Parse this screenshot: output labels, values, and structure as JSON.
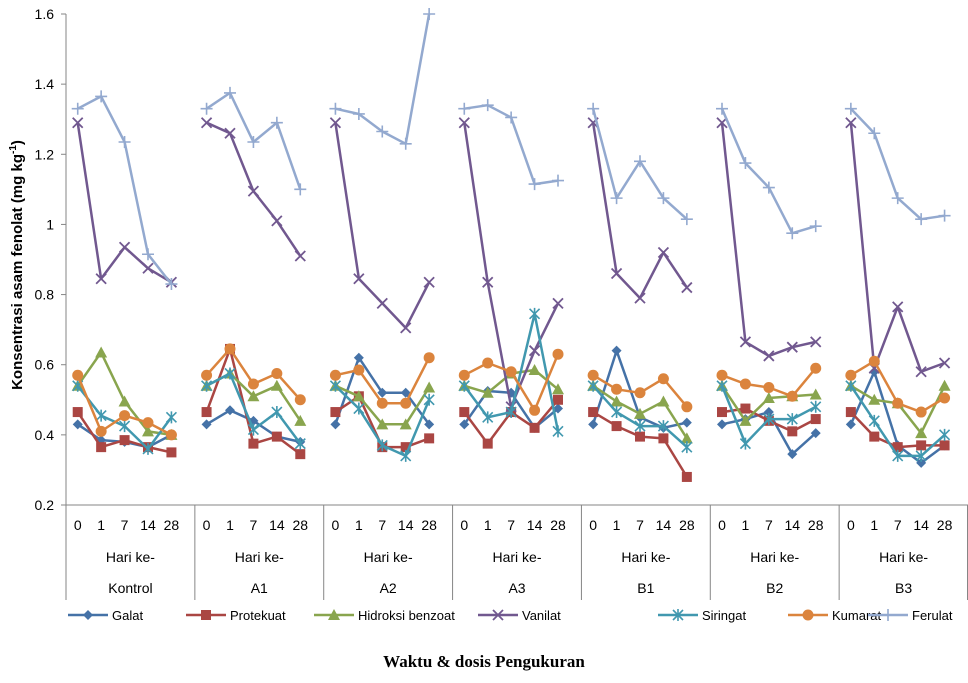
{
  "chart_data": {
    "type": "line",
    "title": "",
    "ylabel_main": "Konsentrasi asam fenolat (mg kg",
    "ylabel_sup": "-1",
    "ylabel_close": ")",
    "xlabel": "Waktu & dosis Pengukuran",
    "ylim": [
      0.2,
      1.6
    ],
    "yticks": [
      "0.2",
      "0.4",
      "0.6",
      "0.8",
      "1",
      "1.2",
      "1.4",
      "1.6"
    ],
    "days": [
      "0",
      "1",
      "7",
      "14",
      "28"
    ],
    "day_label": "Hari ke-",
    "groups": [
      "Kontrol",
      "A1",
      "A2",
      "A3",
      "B1",
      "B2",
      "B3"
    ],
    "legend_position": "bottom",
    "series": [
      {
        "name": "Galat",
        "color": "#4572A7",
        "marker": "diamond",
        "values": [
          [
            0.43,
            0.385,
            0.38,
            0.365,
            0.4
          ],
          [
            0.43,
            0.47,
            0.44,
            0.395,
            0.38
          ],
          [
            0.43,
            0.62,
            0.52,
            0.52,
            0.43
          ],
          [
            0.43,
            0.525,
            0.52,
            0.42,
            0.475
          ],
          [
            0.43,
            0.64,
            0.45,
            0.42,
            0.435
          ],
          [
            0.43,
            0.445,
            0.465,
            0.345,
            0.405
          ],
          [
            0.43,
            0.58,
            0.37,
            0.32,
            0.37
          ]
        ]
      },
      {
        "name": "Protekuat",
        "color": "#AA4643",
        "marker": "square",
        "values": [
          [
            0.465,
            0.365,
            0.385,
            0.365,
            0.35
          ],
          [
            0.465,
            0.645,
            0.375,
            0.395,
            0.345
          ],
          [
            0.465,
            0.51,
            0.365,
            0.365,
            0.39
          ],
          [
            0.465,
            0.375,
            0.465,
            0.42,
            0.5
          ],
          [
            0.465,
            0.425,
            0.395,
            0.39,
            0.28
          ],
          [
            0.465,
            0.475,
            0.44,
            0.41,
            0.445
          ],
          [
            0.465,
            0.395,
            0.365,
            0.37,
            0.37
          ]
        ]
      },
      {
        "name": "Hidroksi benzoat",
        "color": "#89A54E",
        "marker": "triangle",
        "values": [
          [
            0.54,
            0.635,
            0.495,
            0.41,
            0.4
          ],
          [
            0.54,
            0.575,
            0.51,
            0.54,
            0.44
          ],
          [
            0.54,
            0.51,
            0.43,
            0.43,
            0.535
          ],
          [
            0.54,
            0.52,
            0.575,
            0.585,
            0.53
          ],
          [
            0.54,
            0.495,
            0.46,
            0.495,
            0.39
          ],
          [
            0.54,
            0.44,
            0.505,
            0.51,
            0.515
          ],
          [
            0.54,
            0.5,
            0.49,
            0.405,
            0.54
          ]
        ]
      },
      {
        "name": "Vanilat",
        "color": "#71588F",
        "marker": "x",
        "values": [
          [
            1.29,
            0.845,
            0.935,
            0.875,
            0.835
          ],
          [
            1.29,
            1.26,
            1.095,
            1.01,
            0.91
          ],
          [
            1.29,
            0.845,
            0.775,
            0.705,
            0.835
          ],
          [
            1.29,
            0.835,
            0.48,
            0.64,
            0.775
          ],
          [
            1.29,
            0.86,
            0.79,
            0.92,
            0.82
          ],
          [
            1.29,
            0.665,
            0.625,
            0.65,
            0.665
          ],
          [
            1.29,
            0.59,
            0.765,
            0.58,
            0.605
          ]
        ]
      },
      {
        "name": "Siringat",
        "color": "#4198AF",
        "marker": "star",
        "values": [
          [
            0.54,
            0.455,
            0.425,
            0.36,
            0.45
          ],
          [
            0.54,
            0.575,
            0.415,
            0.465,
            0.375
          ],
          [
            0.54,
            0.475,
            0.37,
            0.34,
            0.5
          ],
          [
            0.54,
            0.45,
            0.465,
            0.745,
            0.41
          ],
          [
            0.54,
            0.465,
            0.425,
            0.425,
            0.365
          ],
          [
            0.54,
            0.375,
            0.445,
            0.445,
            0.48
          ],
          [
            0.54,
            0.44,
            0.34,
            0.34,
            0.4
          ]
        ]
      },
      {
        "name": "Kumarat",
        "color": "#DB843D",
        "marker": "circle",
        "values": [
          [
            0.57,
            0.41,
            0.455,
            0.435,
            0.4
          ],
          [
            0.57,
            0.645,
            0.545,
            0.575,
            0.5
          ],
          [
            0.57,
            0.585,
            0.49,
            0.49,
            0.62
          ],
          [
            0.57,
            0.605,
            0.58,
            0.47,
            0.63
          ],
          [
            0.57,
            0.53,
            0.52,
            0.56,
            0.48
          ],
          [
            0.57,
            0.545,
            0.535,
            0.51,
            0.59
          ],
          [
            0.57,
            0.61,
            0.49,
            0.465,
            0.505
          ]
        ]
      },
      {
        "name": "Ferulat",
        "color": "#93A9CF",
        "marker": "plus",
        "values": [
          [
            1.33,
            1.365,
            1.235,
            0.915,
            0.83
          ],
          [
            1.33,
            1.375,
            1.235,
            1.29,
            1.1
          ],
          [
            1.33,
            1.315,
            1.265,
            1.23,
            1.6
          ],
          [
            1.33,
            1.34,
            1.305,
            1.115,
            1.125
          ],
          [
            1.33,
            1.075,
            1.18,
            1.075,
            1.015
          ],
          [
            1.33,
            1.175,
            1.105,
            0.975,
            0.995
          ],
          [
            1.33,
            1.26,
            1.075,
            1.015,
            1.025
          ]
        ]
      }
    ]
  }
}
